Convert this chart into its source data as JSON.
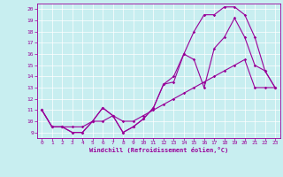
{
  "xlabel": "Windchill (Refroidissement éolien,°C)",
  "ylabel": "",
  "background_color": "#c8eef0",
  "line_color": "#990099",
  "xlim": [
    -0.5,
    23.5
  ],
  "ylim": [
    8.5,
    20.5
  ],
  "xticks": [
    0,
    1,
    2,
    3,
    4,
    5,
    6,
    7,
    8,
    9,
    10,
    11,
    12,
    13,
    14,
    15,
    16,
    17,
    18,
    19,
    20,
    21,
    22,
    23
  ],
  "yticks": [
    9,
    10,
    11,
    12,
    13,
    14,
    15,
    16,
    17,
    18,
    19,
    20
  ],
  "line1_x": [
    0,
    1,
    2,
    3,
    4,
    5,
    6,
    7,
    8,
    9,
    10,
    11,
    12,
    13,
    14,
    15,
    16,
    17,
    18,
    19,
    20,
    21,
    22,
    23
  ],
  "line1_y": [
    11,
    9.5,
    9.5,
    9,
    9,
    10,
    11.2,
    10.5,
    9,
    9.5,
    10.2,
    11.2,
    13.3,
    13.5,
    16,
    18,
    19.5,
    19.5,
    20.2,
    20.2,
    19.5,
    17.5,
    14.5,
    13
  ],
  "line2_x": [
    0,
    1,
    2,
    3,
    4,
    5,
    6,
    7,
    8,
    9,
    10,
    11,
    12,
    13,
    14,
    15,
    16,
    17,
    18,
    19,
    20,
    21,
    22,
    23
  ],
  "line2_y": [
    11,
    9.5,
    9.5,
    9,
    9,
    10,
    11.2,
    10.5,
    9,
    9.5,
    10.2,
    11.2,
    13.3,
    14,
    16,
    15.5,
    13,
    16.5,
    17.5,
    19.2,
    17.5,
    15,
    14.5,
    13
  ],
  "line3_x": [
    0,
    1,
    2,
    3,
    4,
    5,
    6,
    7,
    8,
    9,
    10,
    11,
    12,
    13,
    14,
    15,
    16,
    17,
    18,
    19,
    20,
    21,
    22,
    23
  ],
  "line3_y": [
    11,
    9.5,
    9.5,
    9.5,
    9.5,
    10,
    10,
    10.5,
    10,
    10,
    10.5,
    11,
    11.5,
    12,
    12.5,
    13,
    13.5,
    14,
    14.5,
    15,
    15.5,
    13,
    13,
    13
  ]
}
